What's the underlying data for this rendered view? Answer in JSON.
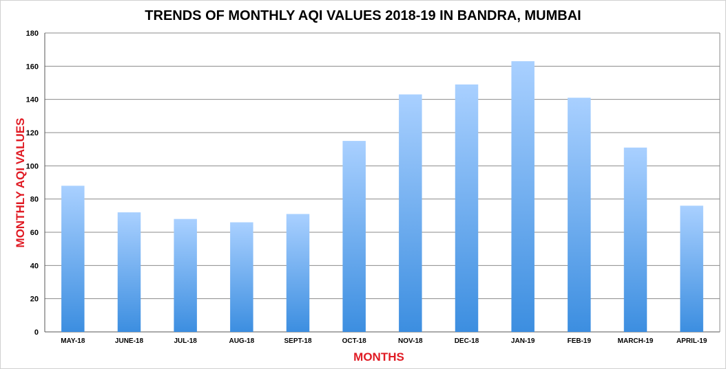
{
  "chart_data": {
    "type": "bar",
    "title": "TRENDS OF MONTHLY AQI VALUES 2018-19 IN BANDRA, MUMBAI",
    "xlabel": "MONTHS",
    "ylabel": "MONTHLY AQI VALUES",
    "categories": [
      "MAY-18",
      "JUNE-18",
      "JUL-18",
      "AUG-18",
      "SEPT-18",
      "OCT-18",
      "NOV-18",
      "DEC-18",
      "JAN-19",
      "FEB-19",
      "MARCH-19",
      "APRIL-19"
    ],
    "values": [
      88,
      72,
      68,
      66,
      71,
      115,
      143,
      149,
      163,
      141,
      111,
      76
    ],
    "ylim": [
      0,
      180
    ],
    "yticks": [
      0,
      20,
      40,
      60,
      80,
      100,
      120,
      140,
      160,
      180
    ],
    "grid": true,
    "legend": "none",
    "colors": {
      "bar_top": "#a9d0ff",
      "bar_bottom": "#3c8ee0",
      "title": "#000000",
      "axis_title": "#e01b24",
      "grid": "#8a8a8a"
    }
  }
}
